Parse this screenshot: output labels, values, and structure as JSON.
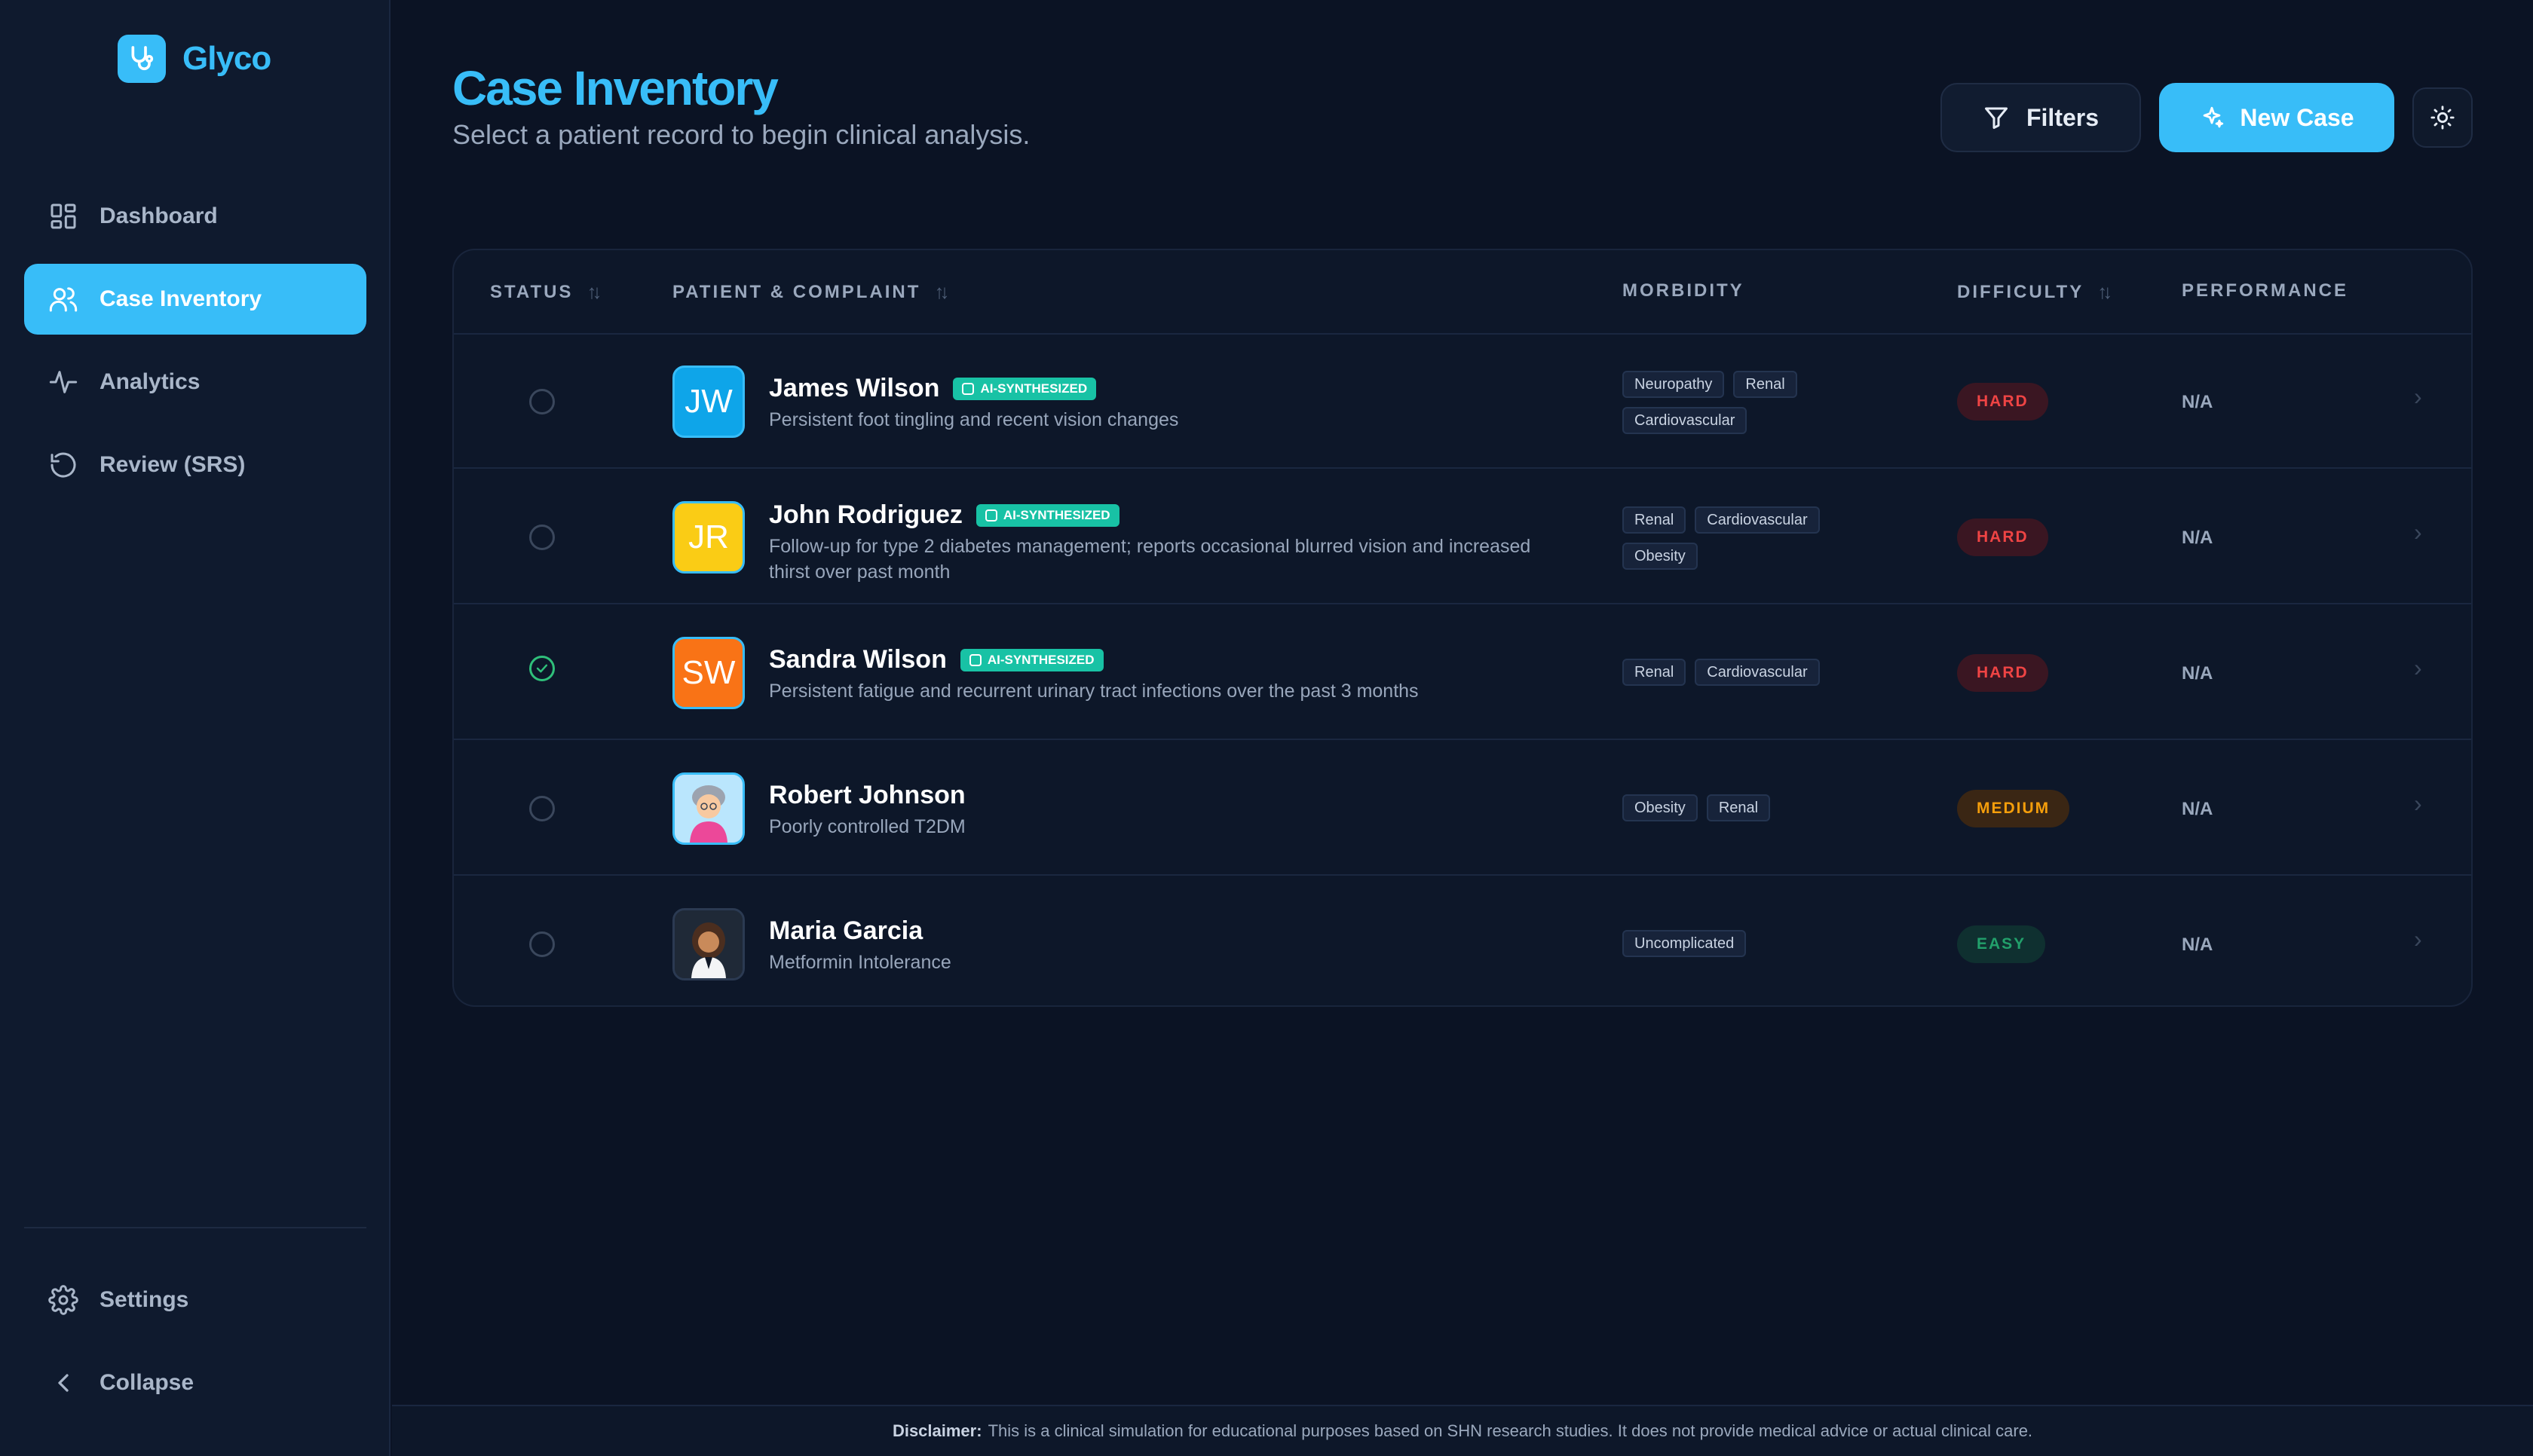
{
  "app": {
    "name": "Glyco",
    "accent": "#38bdf8"
  },
  "sidebar": {
    "items": [
      {
        "label": "Dashboard",
        "icon": "dashboard-grid-icon"
      },
      {
        "label": "Case Inventory",
        "icon": "users-icon",
        "active": true
      },
      {
        "label": "Analytics",
        "icon": "activity-icon"
      },
      {
        "label": "Review (SRS)",
        "icon": "history-icon"
      }
    ],
    "settings_label": "Settings",
    "collapse_label": "Collapse"
  },
  "header": {
    "title": "Case Inventory",
    "subtitle": "Select a patient record to begin clinical analysis.",
    "filters_label": "Filters",
    "new_case_label": "New Case"
  },
  "table": {
    "columns": {
      "status": "STATUS",
      "patient": "PATIENT & COMPLAINT",
      "morbidity": "MORBIDITY",
      "difficulty": "DIFFICULTY",
      "performance": "PERFORMANCE"
    },
    "rows": [
      {
        "initials": "JW",
        "avatar_color": "#0ea5e9",
        "name": "James Wilson",
        "ai_badge": "AI-SYNTHESIZED",
        "complaint": "Persistent foot tingling and recent vision changes",
        "morbidity": [
          "Neuropathy",
          "Renal",
          "Cardiovascular"
        ],
        "difficulty": "HARD",
        "performance": "N/A",
        "completed": false
      },
      {
        "initials": "JR",
        "avatar_color": "#facc15",
        "name": "John Rodriguez",
        "ai_badge": "AI-SYNTHESIZED",
        "complaint": "Follow-up for type 2 diabetes management; reports occasional blurred vision and increased thirst over past month",
        "morbidity": [
          "Renal",
          "Cardiovascular",
          "Obesity"
        ],
        "difficulty": "HARD",
        "performance": "N/A",
        "completed": false
      },
      {
        "initials": "SW",
        "avatar_color": "#f97316",
        "name": "Sandra Wilson",
        "ai_badge": "AI-SYNTHESIZED",
        "complaint": "Persistent fatigue and recurrent urinary tract infections over the past 3 months",
        "morbidity": [
          "Renal",
          "Cardiovascular"
        ],
        "difficulty": "HARD",
        "performance": "N/A",
        "completed": true
      },
      {
        "name": "Robert Johnson",
        "complaint": "Poorly controlled T2DM",
        "morbidity": [
          "Obesity",
          "Renal"
        ],
        "difficulty": "MEDIUM",
        "performance": "N/A",
        "completed": false
      },
      {
        "name": "Maria Garcia",
        "complaint": "Metformin Intolerance",
        "morbidity": [
          "Uncomplicated"
        ],
        "difficulty": "EASY",
        "performance": "N/A",
        "completed": false
      }
    ]
  },
  "footer": {
    "label": "Disclaimer:",
    "text": "This is a clinical simulation for educational purposes based on SHN research studies. It does not provide medical advice or actual clinical care."
  }
}
